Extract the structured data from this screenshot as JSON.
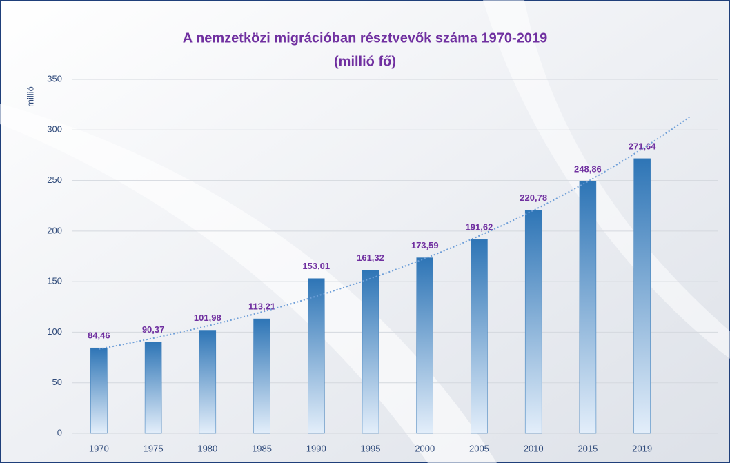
{
  "chart_data": {
    "type": "bar",
    "title": "A nemzetközi migrációban résztvevők száma 1970-2019",
    "subtitle": "(millió fő)",
    "y_label": "millió",
    "categories": [
      "1970",
      "1975",
      "1980",
      "1985",
      "1990",
      "1995",
      "2000",
      "2005",
      "2010",
      "2015",
      "2019"
    ],
    "values": [
      84.46,
      90.37,
      101.98,
      113.21,
      153.01,
      161.32,
      173.59,
      191.62,
      220.78,
      248.86,
      271.64
    ],
    "value_labels": [
      "84,46",
      "90,37",
      "101,98",
      "113,21",
      "153,01",
      "161,32",
      "173,59",
      "191,62",
      "220,78",
      "248,86",
      "271,64"
    ],
    "color": "#2e75b6",
    "ylim": [
      0,
      350
    ],
    "yticks": [
      0,
      50,
      100,
      150,
      200,
      250,
      300,
      350
    ],
    "grid": true,
    "trendline": "exponential"
  }
}
